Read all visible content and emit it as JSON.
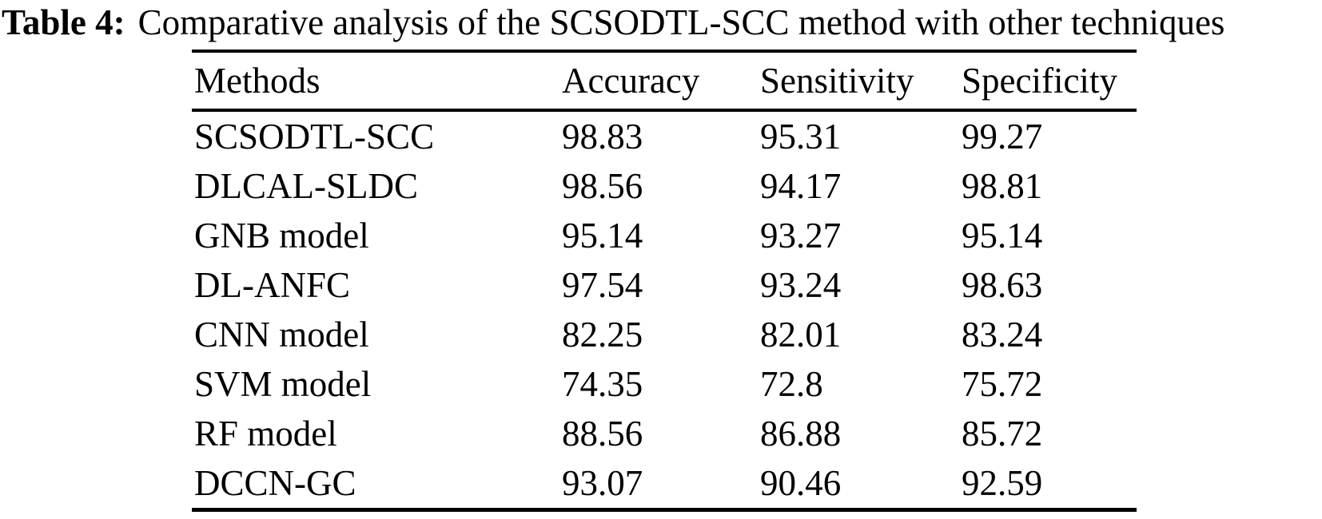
{
  "caption": {
    "label": "Table 4:",
    "text": "Comparative analysis of the SCSODTL-SCC method with other techniques"
  },
  "table": {
    "columns": [
      "Methods",
      "Accuracy",
      "Sensitivity",
      "Specificity"
    ],
    "rows": [
      {
        "method": "SCSODTL-SCC",
        "accuracy": "98.83",
        "sensitivity": "95.31",
        "specificity": "99.27"
      },
      {
        "method": "DLCAL-SLDC",
        "accuracy": "98.56",
        "sensitivity": "94.17",
        "specificity": "98.81"
      },
      {
        "method": "GNB model",
        "accuracy": "95.14",
        "sensitivity": "93.27",
        "specificity": "95.14"
      },
      {
        "method": "DL-ANFC",
        "accuracy": "97.54",
        "sensitivity": "93.24",
        "specificity": "98.63"
      },
      {
        "method": "CNN model",
        "accuracy": "82.25",
        "sensitivity": "82.01",
        "specificity": "83.24"
      },
      {
        "method": "SVM model",
        "accuracy": "74.35",
        "sensitivity": "72.8",
        "specificity": "75.72"
      },
      {
        "method": "RF model",
        "accuracy": "88.56",
        "sensitivity": "86.88",
        "specificity": "85.72"
      },
      {
        "method": "DCCN-GC",
        "accuracy": "93.07",
        "sensitivity": "90.46",
        "specificity": "92.59"
      }
    ]
  },
  "colors": {
    "text": "#000000",
    "background": "#ffffff",
    "rule": "#000000"
  }
}
